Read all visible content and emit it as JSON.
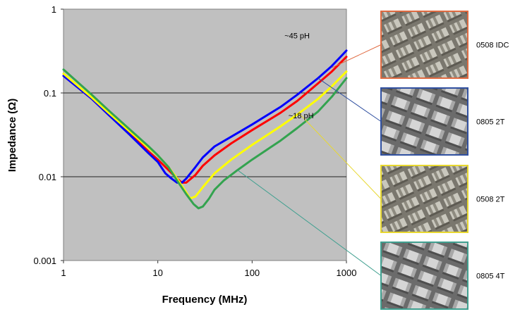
{
  "chart_data": {
    "type": "line",
    "title": "",
    "xlabel": "Frequency (MHz)",
    "ylabel": "Impedance (Ω)",
    "xscale": "log",
    "yscale": "log",
    "xlim": [
      1,
      1000
    ],
    "ylim": [
      0.001,
      1
    ],
    "x_ticks": [
      "1",
      "10",
      "100",
      "1000"
    ],
    "y_ticks": [
      "0.001",
      "0.01",
      "0.1",
      "1"
    ],
    "grid": "horizontal",
    "plot_background": "#c0c0c0",
    "series": [
      {
        "name": "0508 IDC",
        "color": "#ff0000",
        "x": [
          1,
          2,
          3,
          5,
          8,
          10,
          13,
          16,
          18,
          20,
          25,
          30,
          40,
          60,
          100,
          200,
          300,
          500,
          700,
          1000
        ],
        "y": [
          0.16,
          0.085,
          0.055,
          0.033,
          0.02,
          0.016,
          0.012,
          0.0095,
          0.0085,
          0.0085,
          0.0105,
          0.0135,
          0.018,
          0.025,
          0.036,
          0.058,
          0.08,
          0.13,
          0.18,
          0.27
        ]
      },
      {
        "name": "0805 2T",
        "color": "#0000ff",
        "x": [
          1,
          2,
          3,
          5,
          8,
          10,
          12,
          14,
          16,
          18,
          20,
          25,
          30,
          40,
          60,
          100,
          200,
          300,
          500,
          700,
          1000
        ],
        "y": [
          0.16,
          0.085,
          0.055,
          0.032,
          0.019,
          0.015,
          0.011,
          0.0095,
          0.0085,
          0.0085,
          0.0095,
          0.013,
          0.017,
          0.023,
          0.03,
          0.042,
          0.068,
          0.095,
          0.15,
          0.21,
          0.32
        ]
      },
      {
        "name": "0508 2T",
        "color": "#ffff00",
        "x": [
          1,
          2,
          3,
          5,
          8,
          10,
          13,
          16,
          20,
          22,
          25,
          30,
          40,
          60,
          100,
          200,
          300,
          500,
          700,
          1000
        ],
        "y": [
          0.17,
          0.088,
          0.058,
          0.035,
          0.022,
          0.018,
          0.013,
          0.0095,
          0.0065,
          0.0055,
          0.0058,
          0.0075,
          0.011,
          0.016,
          0.024,
          0.04,
          0.055,
          0.085,
          0.12,
          0.18
        ]
      },
      {
        "name": "0805 4T",
        "color": "#33a34f",
        "x": [
          1,
          2,
          3,
          5,
          8,
          10,
          13,
          16,
          20,
          24,
          27,
          30,
          35,
          40,
          50,
          70,
          100,
          200,
          300,
          500,
          700,
          1000
        ],
        "y": [
          0.19,
          0.095,
          0.062,
          0.037,
          0.023,
          0.018,
          0.013,
          0.009,
          0.0062,
          0.0047,
          0.0042,
          0.0044,
          0.0055,
          0.007,
          0.009,
          0.012,
          0.016,
          0.027,
          0.038,
          0.06,
          0.09,
          0.15
        ]
      }
    ],
    "annotations": [
      {
        "text": "~45 pH",
        "x": 300,
        "y": 0.45
      },
      {
        "text": "~18 pH",
        "x": 330,
        "y": 0.05
      }
    ],
    "legend_images": [
      {
        "label": "0508 IDC",
        "border_color": "#e06a40",
        "connect_x": 700,
        "connect_y": 0.2
      },
      {
        "label": "0805 2T",
        "border_color": "#3050a0",
        "connect_x": 500,
        "connect_y": 0.15
      },
      {
        "label": "0508 2T",
        "border_color": "#e8d830",
        "connect_x": 310,
        "connect_y": 0.058
      },
      {
        "label": "0805 4T",
        "border_color": "#40a090",
        "connect_x": 70,
        "connect_y": 0.012
      }
    ]
  }
}
